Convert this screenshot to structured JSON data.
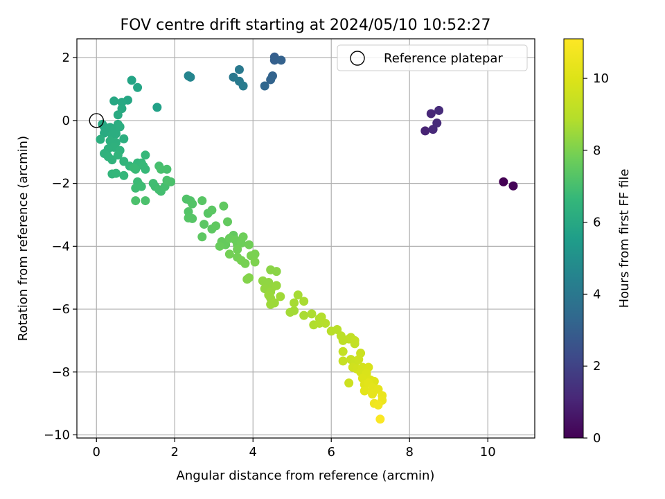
{
  "chart_data": {
    "type": "scatter",
    "title": "FOV centre drift starting at 2024/05/10 10:52:27",
    "xlabel": "Angular distance from reference (arcmin)",
    "ylabel": "Rotation from reference (arcmin)",
    "xlim": [
      -0.5,
      11.2
    ],
    "ylim": [
      -10.1,
      2.6
    ],
    "xticks": [
      0,
      2,
      4,
      6,
      8,
      10
    ],
    "yticks": [
      2,
      0,
      -2,
      -4,
      -6,
      -8,
      -10
    ],
    "xtick_labels": [
      "0",
      "2",
      "4",
      "6",
      "8",
      "10"
    ],
    "ytick_labels": [
      "2",
      "0",
      "−2",
      "−4",
      "−6",
      "−8",
      "−10"
    ],
    "grid": true,
    "colormap": "viridis",
    "colorbar": {
      "label": "Hours from first FF file",
      "range": [
        0,
        11.1
      ],
      "ticks": [
        0,
        2,
        4,
        6,
        8,
        10
      ],
      "tick_labels": [
        "0",
        "2",
        "4",
        "6",
        "8",
        "10"
      ]
    },
    "legend": {
      "position": "top-right",
      "label": "Reference platepar"
    },
    "reference_point": {
      "x": 0,
      "y": 0
    },
    "points": [
      [
        10.4,
        -1.95,
        0.0
      ],
      [
        10.65,
        -2.08,
        0.1
      ],
      [
        8.4,
        -0.33,
        1.0
      ],
      [
        8.55,
        0.22,
        1.1
      ],
      [
        8.6,
        -0.28,
        1.15
      ],
      [
        8.7,
        -0.08,
        1.2
      ],
      [
        8.75,
        0.32,
        1.25
      ],
      [
        4.55,
        2.02,
        3.0
      ],
      [
        4.55,
        1.92,
        3.05
      ],
      [
        4.72,
        1.92,
        3.1
      ],
      [
        4.5,
        1.42,
        3.15
      ],
      [
        4.45,
        1.3,
        3.2
      ],
      [
        4.3,
        1.1,
        3.3
      ],
      [
        3.5,
        1.38,
        4.0
      ],
      [
        3.65,
        1.62,
        4.05
      ],
      [
        3.65,
        1.25,
        4.1
      ],
      [
        3.75,
        1.1,
        4.15
      ],
      [
        2.35,
        1.42,
        4.5
      ],
      [
        2.4,
        1.38,
        4.55
      ],
      [
        1.55,
        0.42,
        5.7
      ],
      [
        0.9,
        1.28,
        5.8
      ],
      [
        1.05,
        1.05,
        5.85
      ],
      [
        0.8,
        0.65,
        5.9
      ],
      [
        0.45,
        0.62,
        5.95
      ],
      [
        0.65,
        0.58,
        6.0
      ],
      [
        0.65,
        0.38,
        6.05
      ],
      [
        0.55,
        0.18,
        6.1
      ],
      [
        0.15,
        -0.12,
        6.0
      ],
      [
        0.2,
        -0.2,
        6.0
      ],
      [
        0.25,
        -0.3,
        6.05
      ],
      [
        0.3,
        -0.35,
        6.05
      ],
      [
        0.2,
        -0.4,
        6.1
      ],
      [
        0.35,
        -0.22,
        6.1
      ],
      [
        0.45,
        -0.3,
        6.15
      ],
      [
        0.55,
        -0.12,
        6.15
      ],
      [
        0.6,
        -0.2,
        6.2
      ],
      [
        0.4,
        -0.45,
        6.2
      ],
      [
        0.5,
        -0.42,
        6.2
      ],
      [
        0.7,
        -0.58,
        6.25
      ],
      [
        0.1,
        -0.6,
        6.25
      ],
      [
        0.35,
        -0.65,
        6.3
      ],
      [
        0.5,
        -0.7,
        6.3
      ],
      [
        0.4,
        -0.75,
        6.3
      ],
      [
        0.45,
        -0.85,
        6.35
      ],
      [
        0.3,
        -0.9,
        6.35
      ],
      [
        0.6,
        -0.95,
        6.4
      ],
      [
        0.2,
        -1.05,
        6.4
      ],
      [
        0.3,
        -1.15,
        6.45
      ],
      [
        0.4,
        -1.25,
        6.45
      ],
      [
        0.55,
        -1.1,
        6.5
      ],
      [
        0.7,
        -1.3,
        6.5
      ],
      [
        0.85,
        -1.45,
        6.55
      ],
      [
        0.4,
        -1.7,
        6.55
      ],
      [
        0.5,
        -1.68,
        6.6
      ],
      [
        0.7,
        -1.75,
        6.6
      ],
      [
        1.05,
        -1.35,
        6.6
      ],
      [
        1.25,
        -1.1,
        6.65
      ],
      [
        1.15,
        -1.35,
        6.65
      ],
      [
        1.2,
        -1.45,
        6.7
      ],
      [
        1.25,
        -1.55,
        6.7
      ],
      [
        1.0,
        -1.55,
        6.75
      ],
      [
        0.95,
        -1.5,
        6.75
      ],
      [
        1.05,
        -1.95,
        6.8
      ],
      [
        1.1,
        -2.05,
        6.8
      ],
      [
        1.0,
        -2.15,
        6.85
      ],
      [
        1.15,
        -2.1,
        6.85
      ],
      [
        1.45,
        -2.0,
        6.9
      ],
      [
        1.5,
        -2.1,
        6.9
      ],
      [
        1.6,
        -2.2,
        6.95
      ],
      [
        1.65,
        -2.25,
        6.95
      ],
      [
        1.75,
        -2.1,
        7.0
      ],
      [
        1.6,
        -1.45,
        7.0
      ],
      [
        1.65,
        -1.55,
        7.05
      ],
      [
        1.8,
        -1.55,
        7.05
      ],
      [
        1.8,
        -1.9,
        7.1
      ],
      [
        1.9,
        -1.95,
        7.1
      ],
      [
        1.0,
        -2.55,
        7.1
      ],
      [
        1.25,
        -2.55,
        7.1
      ],
      [
        2.3,
        -2.5,
        7.2
      ],
      [
        2.4,
        -2.55,
        7.2
      ],
      [
        2.45,
        -2.65,
        7.25
      ],
      [
        2.35,
        -2.9,
        7.25
      ],
      [
        2.35,
        -3.1,
        7.3
      ],
      [
        2.45,
        -3.12,
        7.3
      ],
      [
        2.7,
        -2.55,
        7.35
      ],
      [
        2.85,
        -2.95,
        7.35
      ],
      [
        2.95,
        -2.85,
        7.4
      ],
      [
        2.75,
        -3.3,
        7.4
      ],
      [
        2.95,
        -3.45,
        7.45
      ],
      [
        2.7,
        -3.7,
        7.45
      ],
      [
        3.05,
        -3.35,
        7.5
      ],
      [
        3.25,
        -2.72,
        7.5
      ],
      [
        3.35,
        -3.22,
        7.55
      ],
      [
        3.5,
        -3.65,
        7.55
      ],
      [
        3.2,
        -3.85,
        7.6
      ],
      [
        3.3,
        -3.95,
        7.6
      ],
      [
        3.15,
        -4.0,
        7.65
      ],
      [
        3.4,
        -3.75,
        7.65
      ],
      [
        3.55,
        -3.8,
        7.7
      ],
      [
        3.6,
        -3.95,
        7.7
      ],
      [
        3.7,
        -3.9,
        7.75
      ],
      [
        3.75,
        -3.7,
        7.75
      ],
      [
        3.9,
        -3.95,
        7.8
      ],
      [
        3.6,
        -4.1,
        7.8
      ],
      [
        3.4,
        -4.25,
        7.85
      ],
      [
        3.6,
        -4.35,
        7.85
      ],
      [
        3.7,
        -4.45,
        7.9
      ],
      [
        3.8,
        -4.55,
        7.9
      ],
      [
        3.95,
        -4.3,
        7.95
      ],
      [
        4.05,
        -4.25,
        7.95
      ],
      [
        4.05,
        -4.5,
        8.0
      ],
      [
        3.85,
        -5.05,
        8.1
      ],
      [
        3.9,
        -5.0,
        8.1
      ],
      [
        4.45,
        -4.75,
        8.2
      ],
      [
        4.6,
        -4.8,
        8.2
      ],
      [
        4.25,
        -5.1,
        8.3
      ],
      [
        4.4,
        -5.15,
        8.3
      ],
      [
        4.3,
        -5.35,
        8.35
      ],
      [
        4.5,
        -5.3,
        8.35
      ],
      [
        4.6,
        -5.25,
        8.4
      ],
      [
        4.45,
        -5.45,
        8.4
      ],
      [
        4.4,
        -5.55,
        8.45
      ],
      [
        4.45,
        -5.65,
        8.45
      ],
      [
        4.45,
        -5.85,
        8.5
      ],
      [
        4.55,
        -5.8,
        8.5
      ],
      [
        4.7,
        -5.6,
        8.55
      ],
      [
        4.95,
        -6.1,
        8.6
      ],
      [
        5.05,
        -6.05,
        8.6
      ],
      [
        5.05,
        -5.8,
        8.65
      ],
      [
        5.15,
        -5.55,
        8.65
      ],
      [
        5.3,
        -5.75,
        8.7
      ],
      [
        5.3,
        -6.2,
        8.7
      ],
      [
        5.5,
        -6.15,
        8.75
      ],
      [
        5.55,
        -6.5,
        8.8
      ],
      [
        5.7,
        -6.3,
        8.8
      ],
      [
        5.7,
        -6.45,
        8.85
      ],
      [
        5.75,
        -6.25,
        8.85
      ],
      [
        5.85,
        -6.45,
        8.9
      ],
      [
        6.0,
        -6.7,
        8.95
      ],
      [
        6.15,
        -6.65,
        9.0
      ],
      [
        6.25,
        -6.85,
        9.05
      ],
      [
        6.3,
        -7.0,
        9.1
      ],
      [
        6.45,
        -6.95,
        9.15
      ],
      [
        6.5,
        -6.9,
        9.2
      ],
      [
        6.6,
        -7.1,
        9.25
      ],
      [
        6.6,
        -7.0,
        9.3
      ],
      [
        6.3,
        -7.35,
        9.3
      ],
      [
        6.3,
        -7.65,
        9.35
      ],
      [
        6.5,
        -7.6,
        9.4
      ],
      [
        6.6,
        -7.7,
        9.45
      ],
      [
        6.75,
        -7.4,
        9.5
      ],
      [
        6.7,
        -7.6,
        9.55
      ],
      [
        6.45,
        -8.35,
        9.55
      ],
      [
        6.55,
        -7.85,
        9.6
      ],
      [
        6.65,
        -7.9,
        9.65
      ],
      [
        6.8,
        -7.85,
        9.7
      ],
      [
        6.75,
        -8.0,
        9.75
      ],
      [
        6.85,
        -8.0,
        9.8
      ],
      [
        6.95,
        -7.85,
        9.85
      ],
      [
        6.9,
        -8.05,
        9.9
      ],
      [
        6.8,
        -8.2,
        9.95
      ],
      [
        7.0,
        -8.25,
        10.0
      ],
      [
        7.1,
        -8.3,
        10.05
      ],
      [
        6.85,
        -8.4,
        10.1
      ],
      [
        6.95,
        -8.35,
        10.15
      ],
      [
        6.85,
        -8.6,
        10.2
      ],
      [
        7.05,
        -8.5,
        10.25
      ],
      [
        7.2,
        -8.55,
        10.3
      ],
      [
        7.05,
        -8.7,
        10.35
      ],
      [
        7.3,
        -8.75,
        10.45
      ],
      [
        7.3,
        -8.9,
        10.5
      ],
      [
        7.1,
        -9.0,
        10.6
      ],
      [
        7.2,
        -9.05,
        10.7
      ],
      [
        7.25,
        -9.5,
        11.0
      ]
    ]
  }
}
